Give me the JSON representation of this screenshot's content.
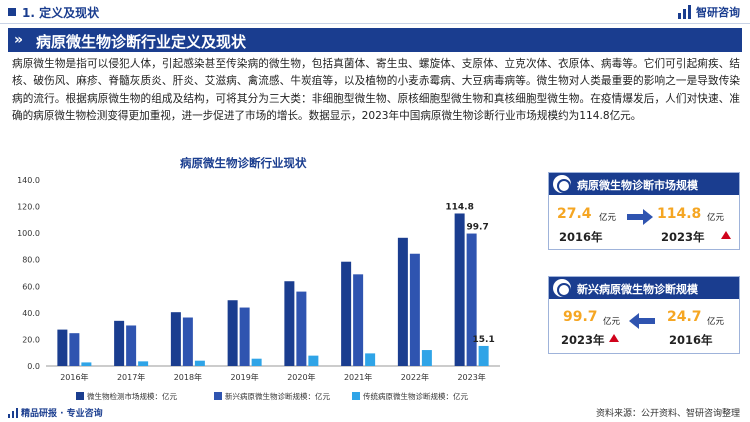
{
  "header": {
    "section": "1. 定义及现状",
    "logo_text": "智研咨询"
  },
  "banner": {
    "chevrons": "»",
    "title": "病原微生物诊断行业定义及现状"
  },
  "paragraph": "病原微生物是指可以侵犯人体，引起感染甚至传染病的微生物，包括真菌体、寄生虫、螺旋体、支原体、立克次体、衣原体、病毒等。它们可引起痢疾、结核、破伤风、麻疹、脊髓灰质炎、肝炎、艾滋病、禽流感、牛炭疽等，以及植物的小麦赤霉病、大豆病毒病等。微生物对人类最重要的影响之一是导致传染病的流行。根据病原微生物的组成及结构，可将其分为三大类：非细胞型微生物、原核细胞型微生物和真核细胞型微生物。在疫情爆发后，人们对快速、准确的病原微生物检测变得更加重视，进一步促进了市场的增长。数据显示，2023年中国病原微生物诊断行业市场规模约为114.8亿元。",
  "card1": {
    "title": "病原微生物诊断市场规模",
    "from_value": "27.4",
    "from_unit": "亿元",
    "from_year": "2016年",
    "to_value": "114.8",
    "to_unit": "亿元",
    "to_year": "2023年"
  },
  "card2": {
    "title": "新兴病原微生物诊断规模",
    "from_value": "99.7",
    "from_unit": "亿元",
    "from_year": "2023年",
    "to_value": "24.7",
    "to_unit": "亿元",
    "to_year": "2016年"
  },
  "footer": {
    "left": "精品研报 · 专业咨询",
    "source": "资料来源：公开资料、智研咨询整理"
  },
  "colors": {
    "navy": "#1a3d8f",
    "series1": "#1a3d8f",
    "series2": "#2f54b0",
    "series3": "#2fa4e7",
    "orange": "#f5a623",
    "red": "#d0021b"
  },
  "chart_data": {
    "type": "bar",
    "title": "病原微生物诊断行业现状",
    "categories": [
      "2016年",
      "2017年",
      "2018年",
      "2019年",
      "2020年",
      "2021年",
      "2022年",
      "2023年"
    ],
    "series": [
      {
        "name": "微生物检测市场规模：亿元",
        "values": [
          27.4,
          34.0,
          40.5,
          49.5,
          63.8,
          78.5,
          96.5,
          114.8
        ],
        "color": "#1a3d8f"
      },
      {
        "name": "新兴病原微生物诊断规模：亿元",
        "values": [
          24.7,
          30.5,
          36.5,
          44.0,
          56.0,
          69.0,
          84.5,
          99.7
        ],
        "color": "#2f54b0"
      },
      {
        "name": "传统病原微生物诊断规模：亿元",
        "values": [
          2.7,
          3.5,
          4.0,
          5.5,
          7.8,
          9.5,
          12.0,
          15.1
        ],
        "color": "#2fa4e7"
      }
    ],
    "data_labels": [
      {
        "series": 0,
        "index": 7,
        "text": "114.8"
      },
      {
        "series": 1,
        "index": 7,
        "text": "99.7"
      },
      {
        "series": 2,
        "index": 7,
        "text": "15.1"
      }
    ],
    "y_ticks": [
      "0.0",
      "20.0",
      "40.0",
      "60.0",
      "80.0",
      "100.0",
      "120.0",
      "140.0"
    ],
    "ylim": [
      0,
      140
    ],
    "grid": false,
    "legend": "bottom"
  }
}
